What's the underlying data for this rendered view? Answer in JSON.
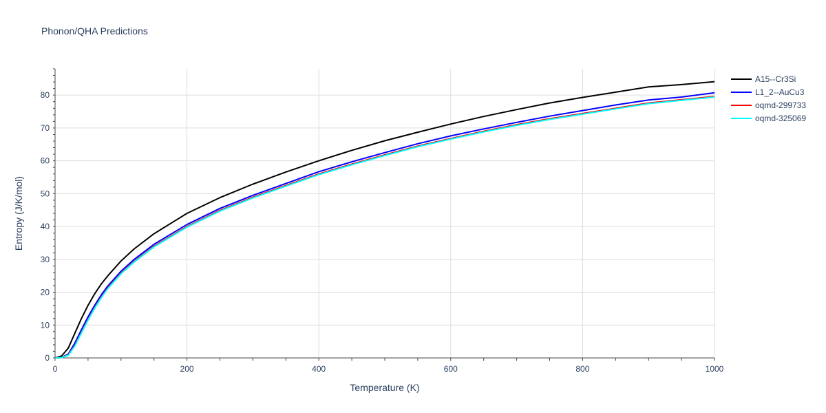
{
  "chart_data": {
    "type": "line",
    "title": "Phonon/QHA Predictions",
    "xlabel": "Temperature (K)",
    "ylabel": "Entropy (J/K/mol)",
    "xlim": [
      0,
      1000
    ],
    "ylim": [
      0,
      88
    ],
    "xticks": [
      "0",
      "200",
      "400",
      "600",
      "800",
      "1000"
    ],
    "yticks": [
      "0",
      "10",
      "20",
      "30",
      "40",
      "50",
      "60",
      "70",
      "80"
    ],
    "grid": true,
    "legend_position": "top-right",
    "x": [
      0,
      10,
      20,
      30,
      40,
      50,
      60,
      70,
      80,
      100,
      120,
      150,
      200,
      250,
      300,
      350,
      400,
      450,
      500,
      550,
      600,
      650,
      700,
      750,
      800,
      850,
      900,
      950,
      1000
    ],
    "series": [
      {
        "name": "A15--Cr3Si",
        "color": "#000000",
        "values": [
          0,
          0.6,
          3.0,
          7.5,
          12.0,
          16.0,
          19.5,
          22.5,
          25.0,
          29.5,
          33.2,
          37.8,
          44.0,
          48.8,
          52.9,
          56.6,
          60.0,
          63.2,
          66.1,
          68.7,
          71.2,
          73.5,
          75.6,
          77.6,
          79.3,
          80.9,
          82.5,
          83.2,
          84.1
        ]
      },
      {
        "name": "L1_2--AuCu3",
        "color": "#0000ff",
        "values": [
          0,
          0.1,
          1.2,
          4.5,
          8.6,
          12.5,
          16.0,
          19.2,
          21.9,
          26.4,
          30.0,
          34.6,
          40.6,
          45.5,
          49.5,
          53.1,
          56.7,
          59.7,
          62.5,
          65.2,
          67.6,
          69.7,
          71.7,
          73.6,
          75.3,
          77.0,
          78.5,
          79.4,
          80.7
        ]
      },
      {
        "name": "oqmd-299733",
        "color": "#ff0000",
        "values": [
          0,
          0.1,
          0.9,
          3.8,
          7.8,
          11.7,
          15.3,
          18.5,
          21.3,
          25.8,
          29.4,
          34.0,
          40.0,
          44.9,
          48.9,
          52.5,
          56.0,
          59.0,
          61.8,
          64.5,
          66.8,
          69.0,
          71.0,
          72.8,
          74.4,
          76.0,
          77.6,
          78.6,
          79.6
        ]
      },
      {
        "name": "oqmd-325069",
        "color": "#00ffff",
        "values": [
          0,
          0.1,
          0.8,
          3.6,
          7.6,
          11.5,
          15.1,
          18.3,
          21.1,
          25.6,
          29.2,
          33.8,
          39.8,
          44.7,
          48.7,
          52.3,
          55.8,
          58.8,
          61.6,
          64.3,
          66.6,
          68.8,
          70.8,
          72.6,
          74.2,
          75.8,
          77.4,
          78.4,
          79.4
        ]
      }
    ]
  }
}
